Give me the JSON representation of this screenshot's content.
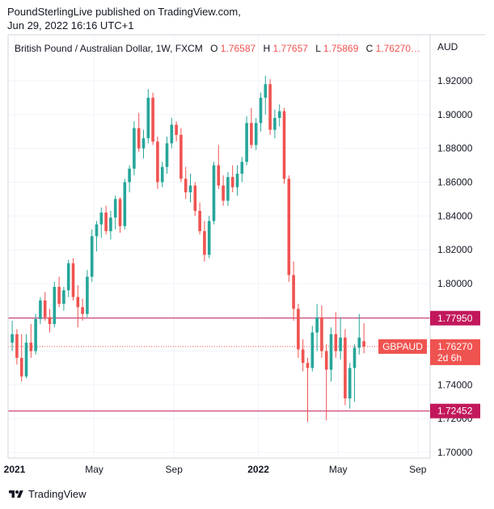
{
  "header": {
    "line1": "PoundSterlingLive published on TradingView.com,",
    "line2": "Jun 29, 2022 16:16 UTC+1"
  },
  "legend": {
    "symbol_text": "British Pound / Australian Dollar, 1W, FXCM",
    "o_label": "O",
    "o_value": "1.76587",
    "h_label": "H",
    "h_value": "1.77657",
    "l_label": "L",
    "l_value": "1.75869",
    "c_label": "C",
    "c_value": "1.76270…"
  },
  "footer": {
    "brand": "TradingView",
    "logo_icon": "tradingview-logo-icon"
  },
  "colors": {
    "up": "#26a69a",
    "down": "#ef5350",
    "hline": "#c2185b",
    "grid": "#f0f3fa"
  },
  "chart_data": {
    "type": "candlestick",
    "currency_label": "AUD",
    "y_ticks": [
      "1.92000",
      "1.90000",
      "1.88000",
      "1.86000",
      "1.84000",
      "1.82000",
      "1.80000",
      "1.78000",
      "1.76000",
      "1.74000",
      "1.72000",
      "1.70000"
    ],
    "ylim": [
      1.695,
      1.925
    ],
    "x_tick_labels": [
      {
        "label": "2021",
        "bold": true,
        "week": 0.5
      },
      {
        "label": "May",
        "bold": false,
        "week": 17.5
      },
      {
        "label": "Sep",
        "bold": false,
        "week": 34.5
      },
      {
        "label": "2022",
        "bold": true,
        "week": 52.5
      },
      {
        "label": "May",
        "bold": false,
        "week": 69.5
      },
      {
        "label": "Sep",
        "bold": false,
        "week": 86.5
      }
    ],
    "grid": true,
    "horizontal_lines": [
      {
        "value": 1.7795,
        "label": "1.77950"
      },
      {
        "value": 1.72452,
        "label": "1.72452"
      }
    ],
    "last_price": {
      "value": 1.7627,
      "label": "1.76270",
      "symbol": "GBPAUD",
      "countdown": "2d 6h"
    },
    "candles": [
      [
        1.765,
        1.778,
        1.76,
        1.77
      ],
      [
        1.77,
        1.773,
        1.752,
        1.756
      ],
      [
        1.756,
        1.77,
        1.742,
        1.745
      ],
      [
        1.745,
        1.77,
        1.744,
        1.765
      ],
      [
        1.765,
        1.776,
        1.756,
        1.76
      ],
      [
        1.76,
        1.782,
        1.758,
        1.779
      ],
      [
        1.779,
        1.792,
        1.776,
        1.79
      ],
      [
        1.79,
        1.795,
        1.778,
        1.78
      ],
      [
        1.78,
        1.785,
        1.771,
        1.776
      ],
      [
        1.776,
        1.801,
        1.774,
        1.798
      ],
      [
        1.798,
        1.804,
        1.786,
        1.788
      ],
      [
        1.788,
        1.798,
        1.784,
        1.796
      ],
      [
        1.796,
        1.814,
        1.792,
        1.812
      ],
      [
        1.812,
        1.815,
        1.79,
        1.792
      ],
      [
        1.792,
        1.799,
        1.774,
        1.786
      ],
      [
        1.786,
        1.791,
        1.778,
        1.782
      ],
      [
        1.782,
        1.808,
        1.78,
        1.804
      ],
      [
        1.804,
        1.832,
        1.801,
        1.828
      ],
      [
        1.828,
        1.837,
        1.819,
        1.835
      ],
      [
        1.835,
        1.845,
        1.827,
        1.842
      ],
      [
        1.842,
        1.846,
        1.829,
        1.831
      ],
      [
        1.831,
        1.843,
        1.826,
        1.839
      ],
      [
        1.839,
        1.852,
        1.832,
        1.85
      ],
      [
        1.85,
        1.851,
        1.83,
        1.834
      ],
      [
        1.834,
        1.862,
        1.832,
        1.86
      ],
      [
        1.86,
        1.87,
        1.854,
        1.868
      ],
      [
        1.868,
        1.896,
        1.864,
        1.892
      ],
      [
        1.892,
        1.901,
        1.878,
        1.88
      ],
      [
        1.88,
        1.891,
        1.874,
        1.886
      ],
      [
        1.886,
        1.915,
        1.883,
        1.91
      ],
      [
        1.91,
        1.913,
        1.882,
        1.884
      ],
      [
        1.884,
        1.887,
        1.856,
        1.86
      ],
      [
        1.86,
        1.872,
        1.857,
        1.869
      ],
      [
        1.869,
        1.887,
        1.865,
        1.883
      ],
      [
        1.883,
        1.898,
        1.88,
        1.894
      ],
      [
        1.894,
        1.896,
        1.884,
        1.888
      ],
      [
        1.888,
        1.892,
        1.86,
        1.862
      ],
      [
        1.862,
        1.869,
        1.85,
        1.854
      ],
      [
        1.854,
        1.865,
        1.848,
        1.858
      ],
      [
        1.858,
        1.86,
        1.84,
        1.843
      ],
      [
        1.843,
        1.848,
        1.829,
        1.831
      ],
      [
        1.831,
        1.837,
        1.813,
        1.817
      ],
      [
        1.817,
        1.84,
        1.815,
        1.837
      ],
      [
        1.837,
        1.872,
        1.835,
        1.87
      ],
      [
        1.87,
        1.882,
        1.856,
        1.858
      ],
      [
        1.858,
        1.864,
        1.846,
        1.849
      ],
      [
        1.849,
        1.866,
        1.846,
        1.863
      ],
      [
        1.863,
        1.87,
        1.854,
        1.857
      ],
      [
        1.857,
        1.87,
        1.852,
        1.865
      ],
      [
        1.865,
        1.875,
        1.86,
        1.872
      ],
      [
        1.872,
        1.899,
        1.87,
        1.895
      ],
      [
        1.895,
        1.904,
        1.88,
        1.882
      ],
      [
        1.882,
        1.898,
        1.879,
        1.895
      ],
      [
        1.895,
        1.913,
        1.89,
        1.91
      ],
      [
        1.91,
        1.923,
        1.9,
        1.918
      ],
      [
        1.918,
        1.921,
        1.888,
        1.891
      ],
      [
        1.891,
        1.903,
        1.886,
        1.898
      ],
      [
        1.898,
        1.906,
        1.893,
        1.902
      ],
      [
        1.902,
        1.904,
        1.859,
        1.862
      ],
      [
        1.862,
        1.864,
        1.801,
        1.805
      ],
      [
        1.805,
        1.813,
        1.778,
        1.785
      ],
      [
        1.785,
        1.788,
        1.756,
        1.761
      ],
      [
        1.761,
        1.767,
        1.748,
        1.753
      ],
      [
        1.753,
        1.756,
        1.718,
        1.75
      ],
      [
        1.75,
        1.775,
        1.748,
        1.771
      ],
      [
        1.771,
        1.788,
        1.76,
        1.78
      ],
      [
        1.78,
        1.787,
        1.756,
        1.76
      ],
      [
        1.76,
        1.764,
        1.719,
        1.749
      ],
      [
        1.749,
        1.774,
        1.742,
        1.77
      ],
      [
        1.77,
        1.783,
        1.756,
        1.76
      ],
      [
        1.76,
        1.78,
        1.755,
        1.768
      ],
      [
        1.768,
        1.773,
        1.728,
        1.732
      ],
      [
        1.732,
        1.753,
        1.726,
        1.75
      ],
      [
        1.75,
        1.764,
        1.73,
        1.762
      ],
      [
        1.762,
        1.782,
        1.758,
        1.768
      ],
      [
        1.76587,
        1.77657,
        1.75869,
        1.7627
      ]
    ]
  }
}
